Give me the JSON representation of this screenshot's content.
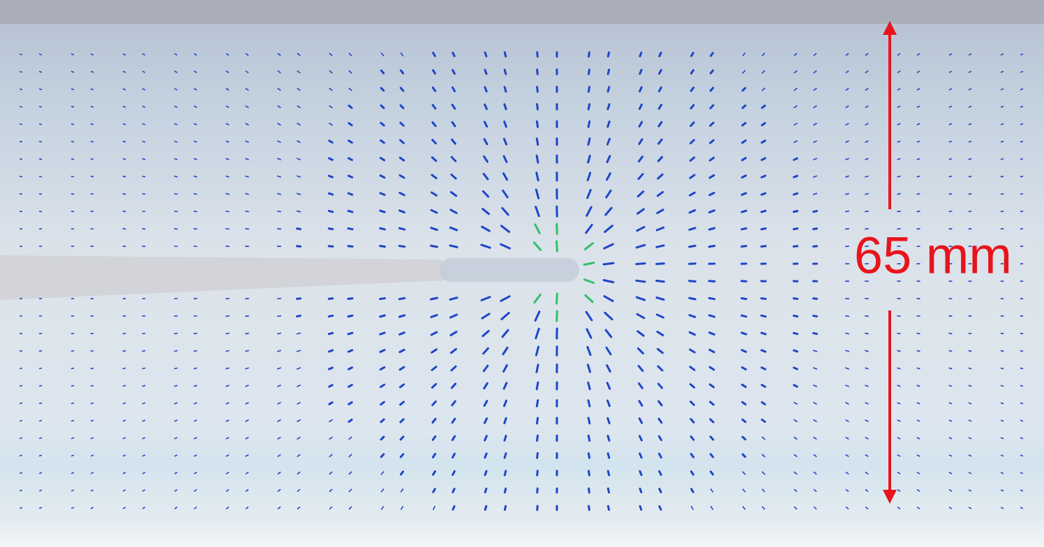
{
  "annotation": {
    "label": "65 mm"
  }
}
